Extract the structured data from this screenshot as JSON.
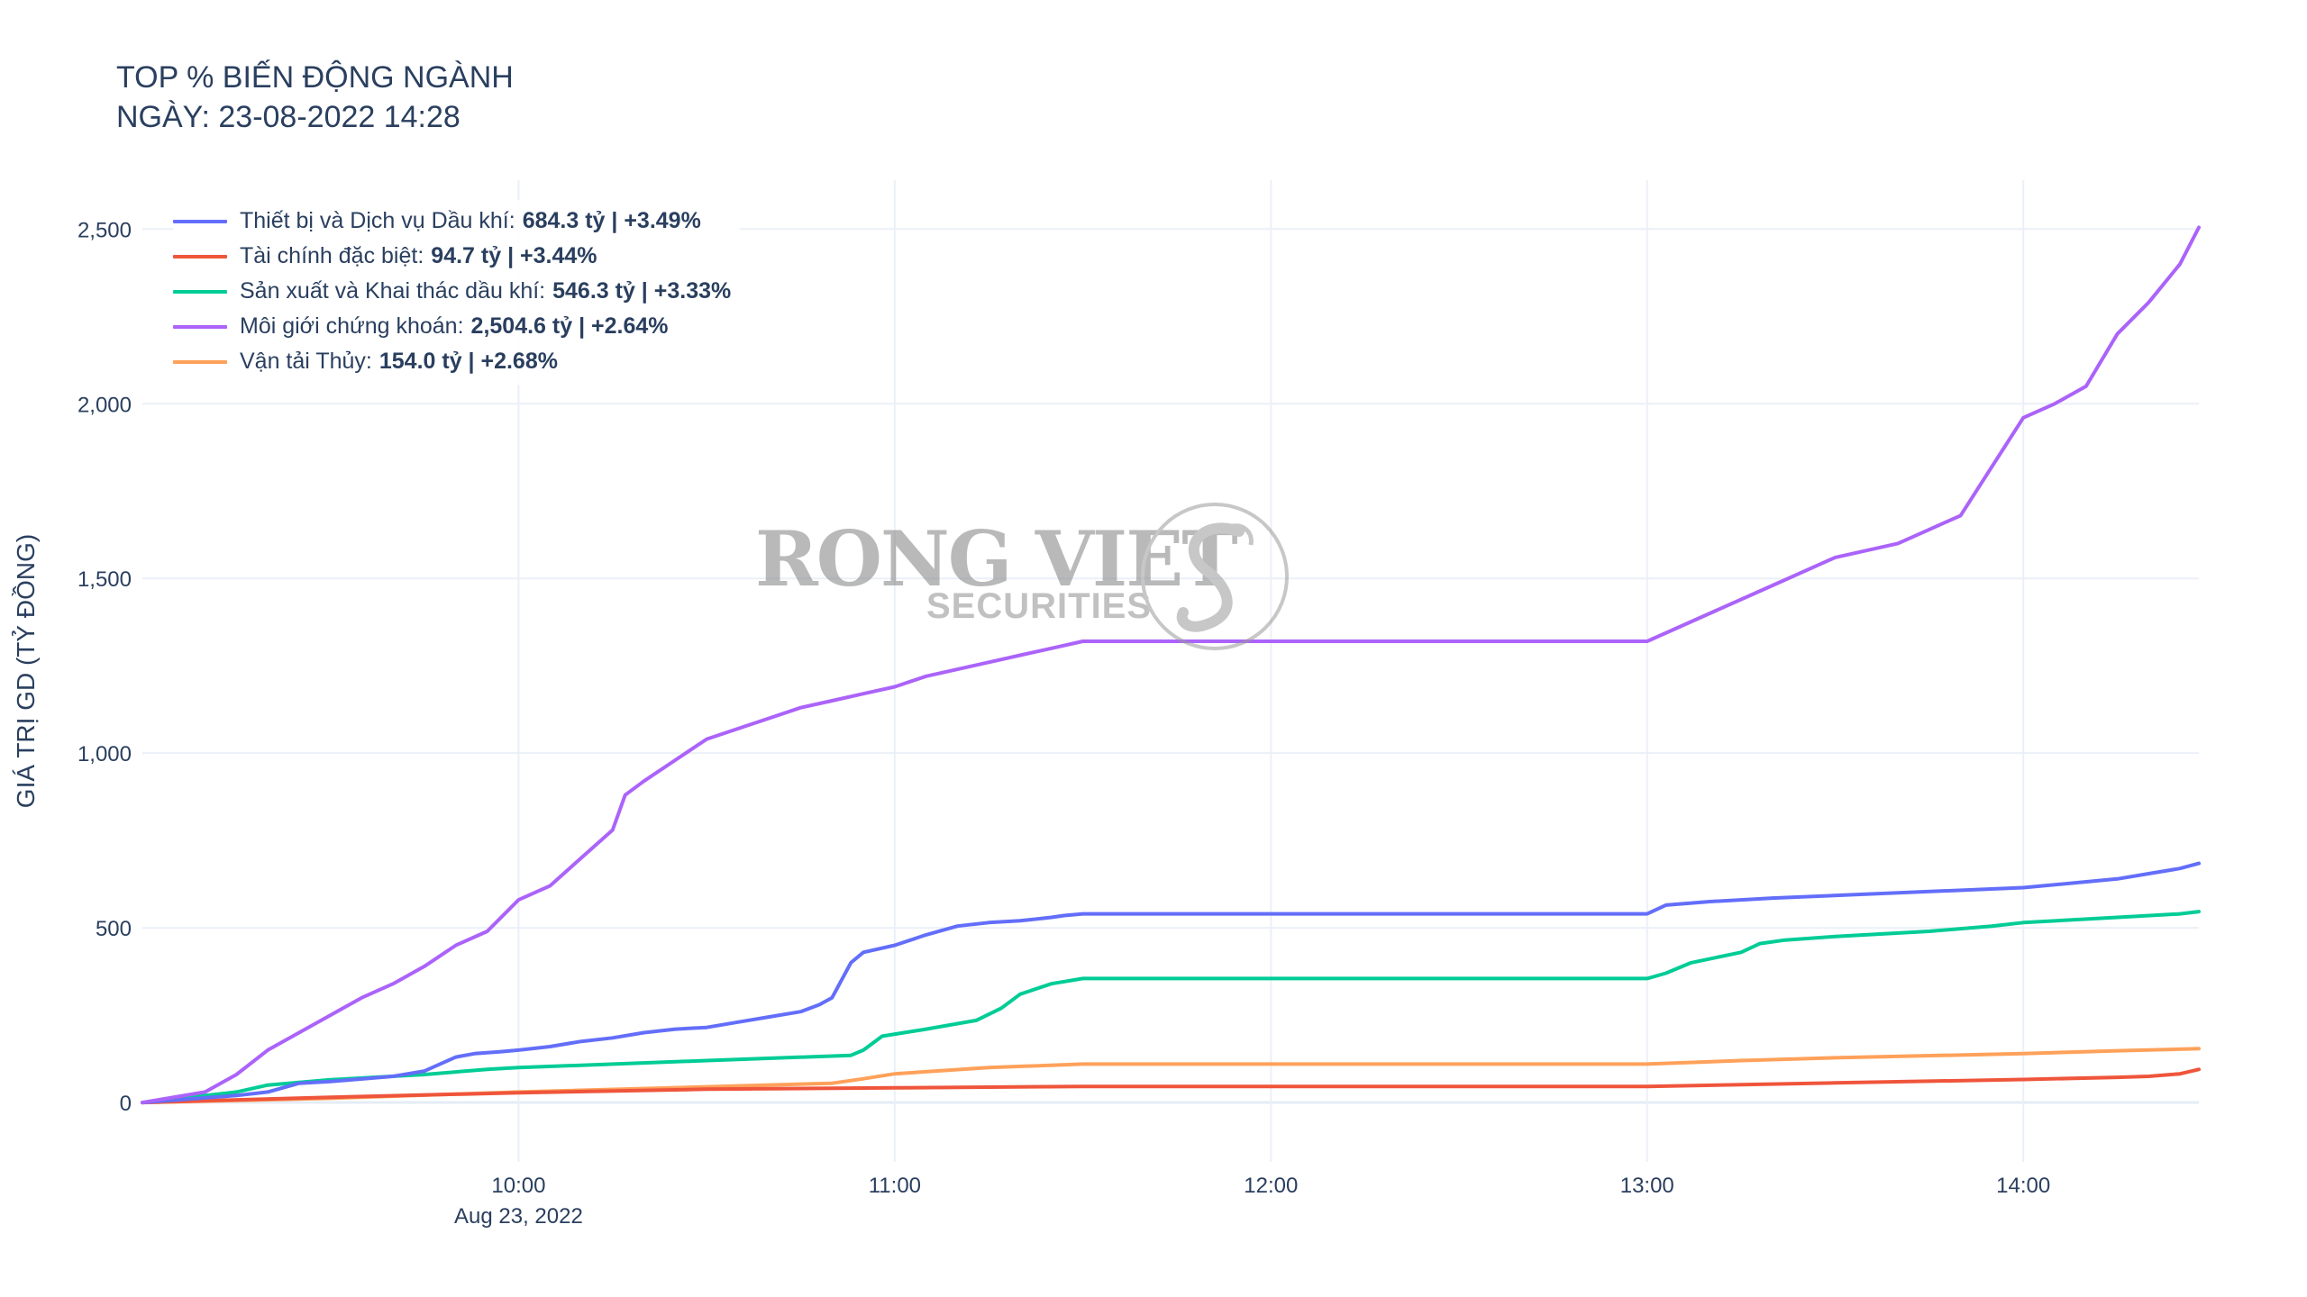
{
  "title": {
    "line1": "TOP % BIẾN ĐỘNG NGÀNH",
    "line2": "NGÀY: 23-08-2022 14:28"
  },
  "watermark": {
    "brand": "RONG VIET",
    "sub": "SECURITIES"
  },
  "colors": {
    "grid": "#ebf0f8",
    "axis_text": "#2a3f5f",
    "zero_line": "#e5ecf6"
  },
  "chart_data": {
    "type": "line",
    "title": "TOP % BIẾN ĐỘNG NGÀNH\nNGÀY: 23-08-2022 14:28",
    "xlabel": "",
    "ylabel": "GIÁ TRỊ GD (TỶ ĐỒNG)",
    "x_ticks": [
      "10:00",
      "11:00",
      "12:00",
      "13:00",
      "14:00"
    ],
    "x_tick_date": "Aug 23, 2022",
    "x_range": [
      "09:00",
      "14:28"
    ],
    "y_ticks": [
      "0",
      "500",
      "1,000",
      "1,500",
      "2,000",
      "2,500"
    ],
    "ylim": [
      -170,
      2640
    ],
    "grid": true,
    "legend_position": "top-left",
    "series": [
      {
        "name": "Thiết bị và Dịch vụ Dầu khí:",
        "legend_value": "684.3 tỷ | +3.49%",
        "color": "#636efa",
        "x": [
          "09:00",
          "09:15",
          "09:20",
          "09:25",
          "09:30",
          "09:40",
          "09:45",
          "09:50",
          "09:53",
          "09:57",
          "10:00",
          "10:05",
          "10:10",
          "10:15",
          "10:20",
          "10:25",
          "10:30",
          "10:35",
          "10:40",
          "10:45",
          "10:48",
          "10:50",
          "10:53",
          "10:55",
          "11:00",
          "11:05",
          "11:10",
          "11:15",
          "11:20",
          "11:25",
          "11:27",
          "11:30",
          "11:35",
          "13:00",
          "13:03",
          "13:10",
          "13:20",
          "13:40",
          "14:00",
          "14:15",
          "14:20",
          "14:25",
          "14:28"
        ],
        "y": [
          0,
          20,
          30,
          55,
          60,
          75,
          90,
          130,
          140,
          145,
          150,
          160,
          175,
          185,
          200,
          210,
          215,
          230,
          245,
          260,
          280,
          300,
          400,
          430,
          450,
          480,
          505,
          515,
          520,
          530,
          535,
          540,
          540,
          540,
          565,
          575,
          585,
          600,
          615,
          640,
          655,
          670,
          684.3
        ]
      },
      {
        "name": "Tài chính đặc biệt:",
        "legend_value": "94.7 tỷ | +3.44%",
        "color": "#ef553b",
        "x": [
          "09:00",
          "09:30",
          "10:00",
          "10:30",
          "11:00",
          "11:30",
          "12:00",
          "13:00",
          "13:30",
          "14:00",
          "14:15",
          "14:20",
          "14:25",
          "14:28"
        ],
        "y": [
          0,
          15,
          28,
          38,
          42,
          46,
          46,
          46,
          56,
          66,
          72,
          75,
          82,
          94.7
        ]
      },
      {
        "name": "Sản xuất và Khai thác dầu khí:",
        "legend_value": "546.3 tỷ | +3.33%",
        "color": "#00cc96",
        "x": [
          "09:00",
          "09:15",
          "09:20",
          "09:30",
          "09:45",
          "09:55",
          "10:00",
          "10:30",
          "10:53",
          "10:55",
          "10:58",
          "11:05",
          "11:13",
          "11:17",
          "11:20",
          "11:25",
          "11:30",
          "11:35",
          "13:00",
          "13:03",
          "13:07",
          "13:15",
          "13:18",
          "13:22",
          "13:30",
          "13:45",
          "13:55",
          "14:00",
          "14:15",
          "14:25",
          "14:28"
        ],
        "y": [
          0,
          30,
          50,
          65,
          80,
          95,
          100,
          120,
          135,
          150,
          190,
          210,
          235,
          270,
          310,
          340,
          355,
          355,
          355,
          370,
          400,
          430,
          455,
          465,
          475,
          490,
          505,
          515,
          530,
          540,
          546.3
        ]
      },
      {
        "name": "Môi giới chứng khoán:",
        "legend_value": "2,504.6 tỷ | +2.64%",
        "color": "#ab63fa",
        "x": [
          "09:00",
          "09:10",
          "09:15",
          "09:20",
          "09:25",
          "09:30",
          "09:35",
          "09:40",
          "09:45",
          "09:50",
          "09:55",
          "10:00",
          "10:05",
          "10:10",
          "10:15",
          "10:17",
          "10:20",
          "10:25",
          "10:30",
          "10:35",
          "10:40",
          "10:45",
          "10:50",
          "10:55",
          "11:00",
          "11:05",
          "11:10",
          "11:15",
          "11:20",
          "11:25",
          "11:30",
          "13:00",
          "13:10",
          "13:20",
          "13:30",
          "13:40",
          "13:45",
          "13:50",
          "13:55",
          "14:00",
          "14:05",
          "14:10",
          "14:15",
          "14:20",
          "14:25",
          "14:28"
        ],
        "y": [
          0,
          30,
          80,
          150,
          200,
          250,
          300,
          340,
          390,
          450,
          490,
          580,
          620,
          700,
          780,
          880,
          920,
          980,
          1040,
          1070,
          1100,
          1130,
          1150,
          1170,
          1190,
          1220,
          1240,
          1260,
          1280,
          1300,
          1320,
          1320,
          1400,
          1480,
          1560,
          1600,
          1640,
          1680,
          1820,
          1960,
          2000,
          2050,
          2200,
          2290,
          2400,
          2504.6
        ]
      },
      {
        "name": "Vận tải Thủy:",
        "legend_value": "154.0 tỷ | +2.68%",
        "color": "#ffa15a",
        "x": [
          "09:00",
          "09:30",
          "10:00",
          "10:30",
          "10:50",
          "10:55",
          "11:00",
          "11:15",
          "11:30",
          "12:00",
          "13:00",
          "13:15",
          "13:30",
          "14:00",
          "14:15",
          "14:28"
        ],
        "y": [
          0,
          12,
          30,
          45,
          55,
          68,
          82,
          100,
          110,
          110,
          110,
          120,
          128,
          140,
          148,
          154
        ]
      }
    ]
  }
}
